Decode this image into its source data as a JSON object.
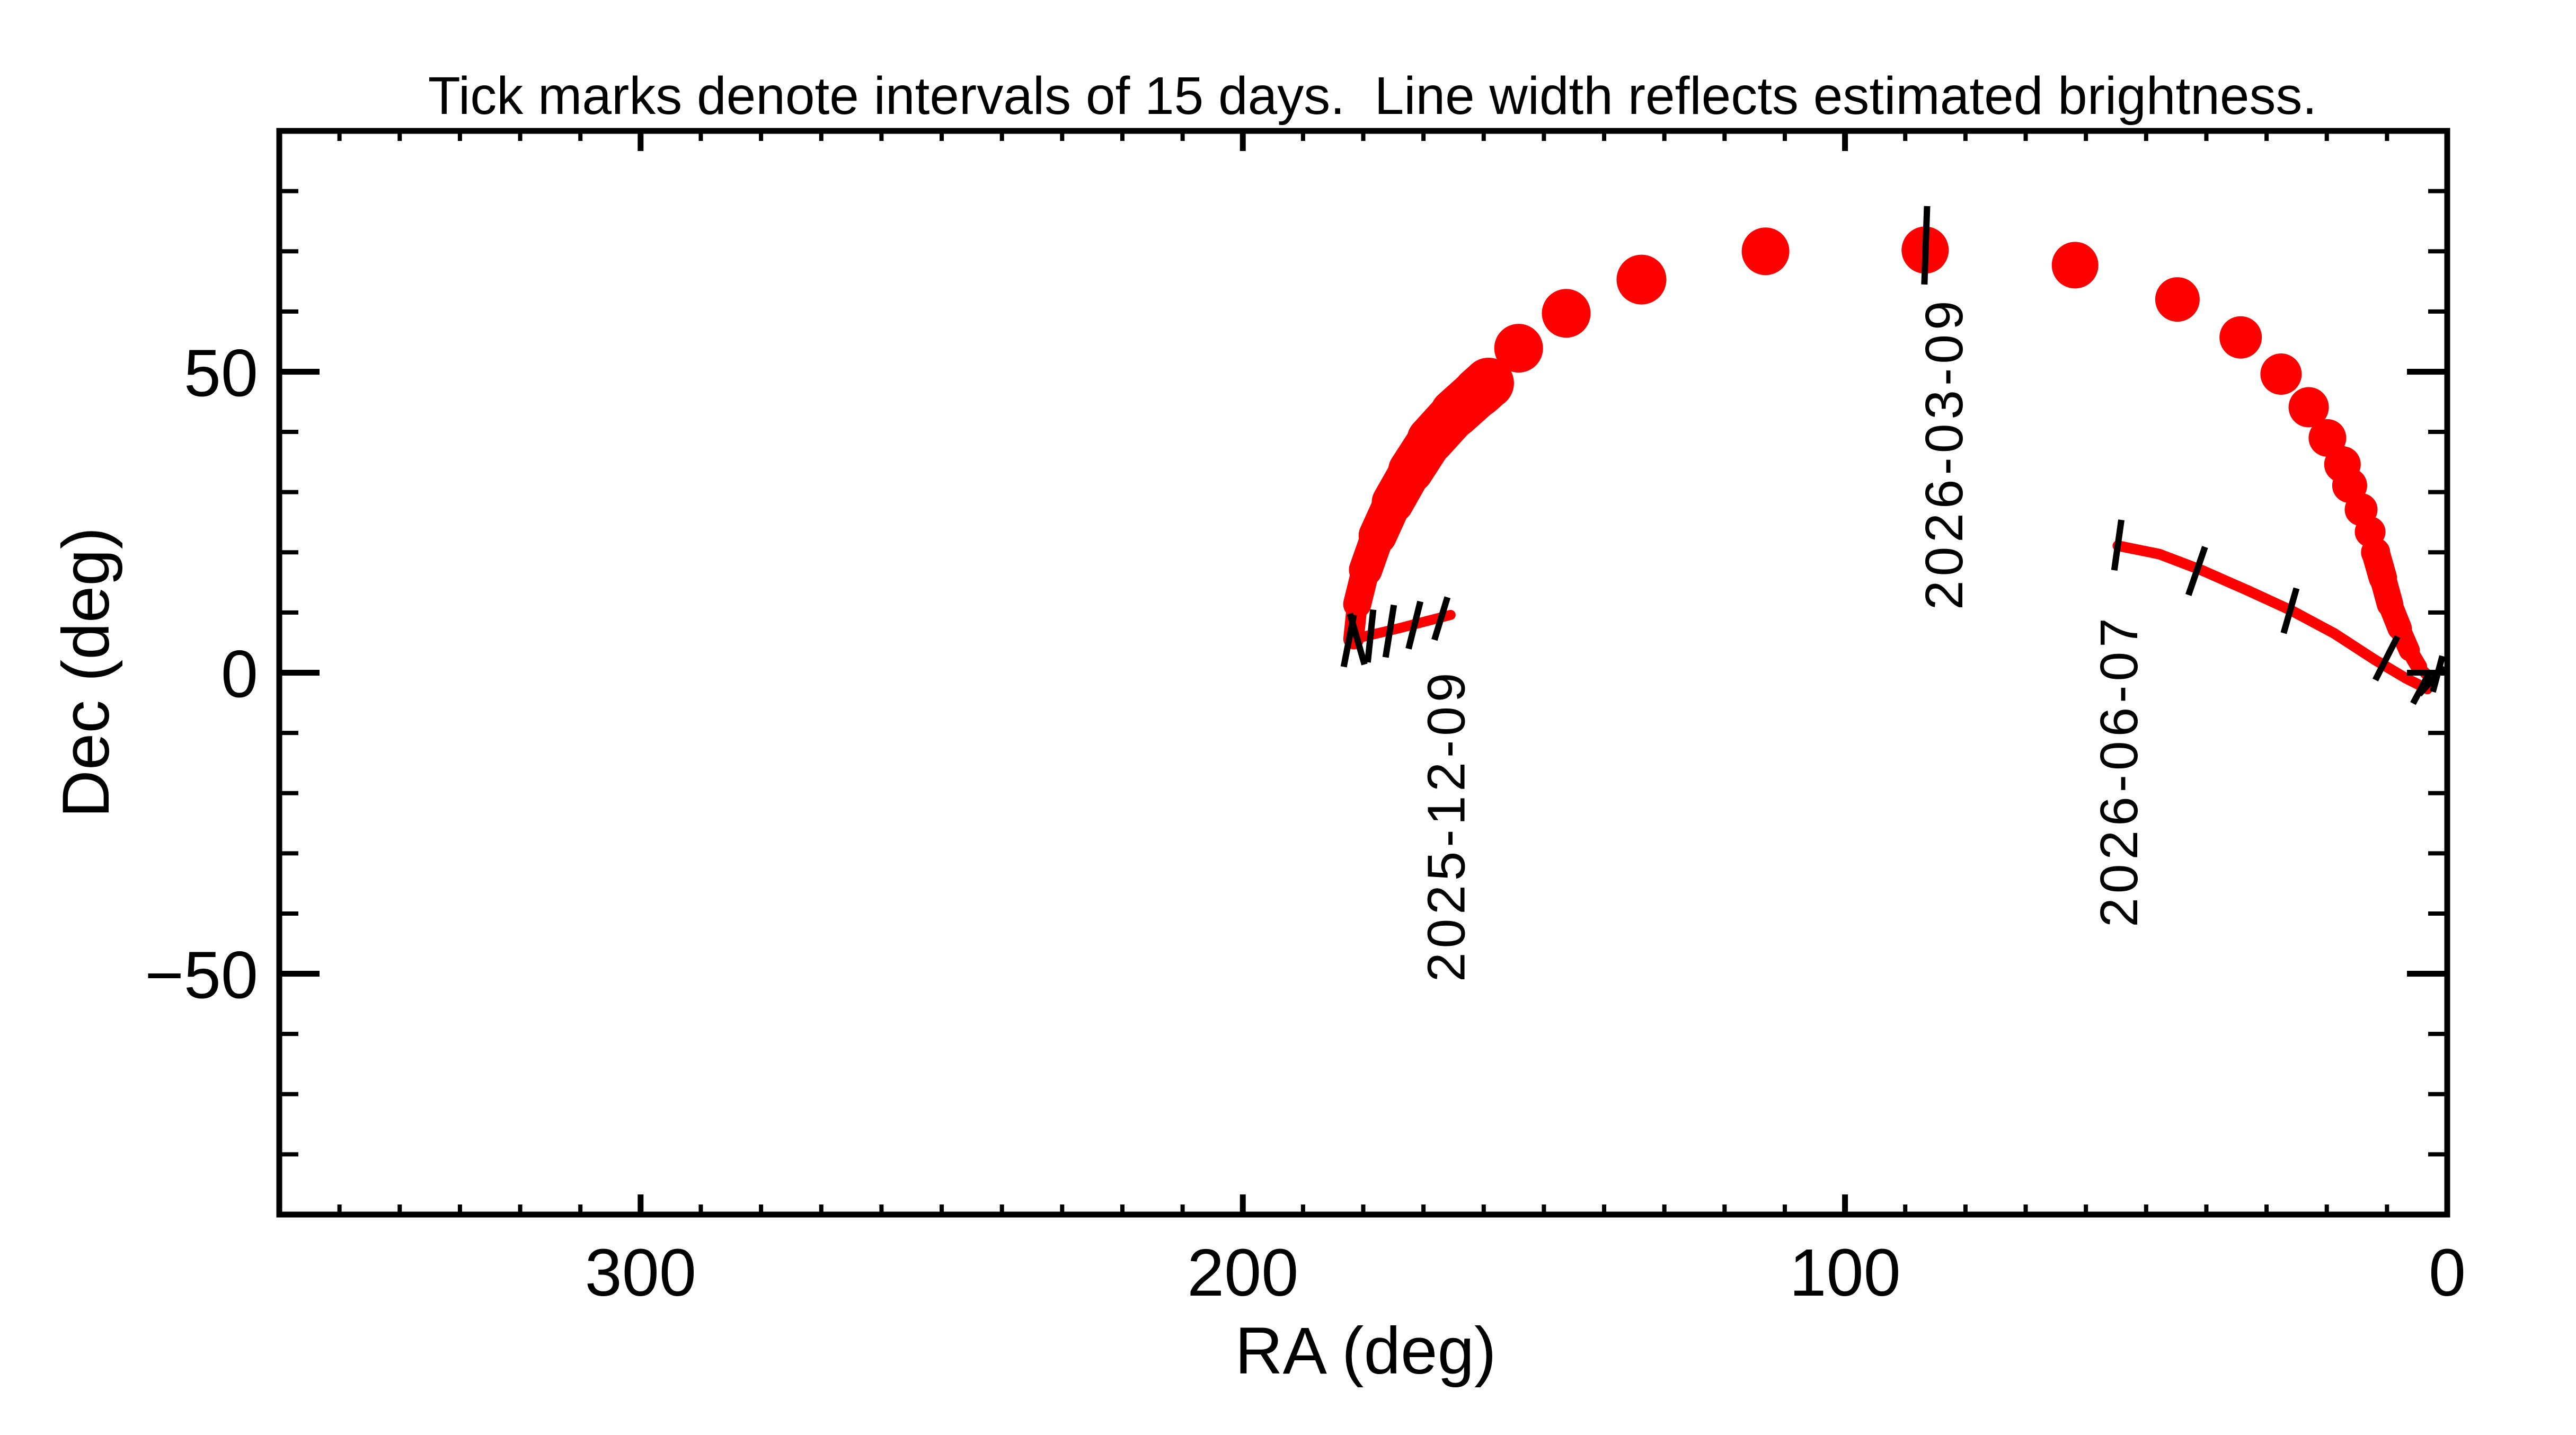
{
  "title": "Tick marks denote intervals of 15 days.  Line width reflects estimated brightness.",
  "colors": {
    "background": "#ffffff",
    "trajectory": "#ff0000",
    "axis": "#000000",
    "text": "#000000"
  },
  "chart_data": {
    "type": "line",
    "title": "Tick marks denote intervals of 15 days.  Line width reflects estimated brightness.",
    "xlabel": "RA (deg)",
    "ylabel": "Dec (deg)",
    "xlim": [
      360,
      0
    ],
    "ylim": [
      -90,
      90
    ],
    "grid": false,
    "x_axis": {
      "major_tick_values": [
        300,
        200,
        100,
        0
      ],
      "tick_labels": [
        "300",
        "200",
        "100",
        "0"
      ],
      "minor_step": 10
    },
    "y_axis": {
      "major_tick_values": [
        50,
        0,
        -50
      ],
      "tick_labels": [
        "50",
        "0",
        "−50"
      ],
      "minor_step": 10
    },
    "series_note": "comet sky-path; line width and dot size encode estimated brightness (px units)",
    "segments": [
      {
        "name": "start-thin-arc",
        "width": 19,
        "points": [
          [
            165.5,
            9.6
          ],
          [
            174.0,
            7.4
          ],
          [
            181.6,
            5.6
          ]
        ]
      },
      {
        "name": "rising-brightening-band",
        "points_w": [
          [
            181.6,
            5.6,
            30
          ],
          [
            181.0,
            11.4,
            48
          ],
          [
            179.6,
            17.1,
            58
          ],
          [
            177.6,
            22.8,
            68
          ],
          [
            175.1,
            28.3,
            76
          ],
          [
            172.1,
            33.6,
            83
          ],
          [
            168.8,
            38.7,
            88
          ],
          [
            164.8,
            43.1,
            92
          ],
          [
            160.9,
            46.6,
            95
          ],
          [
            159.2,
            48.1,
            96
          ]
        ]
      },
      {
        "name": "fading-tail",
        "points_w": [
          [
            11.9,
            20.0,
            55
          ],
          [
            10.7,
            15.8,
            52
          ],
          [
            9.5,
            11.4,
            48
          ],
          [
            7.9,
            7.4,
            44
          ],
          [
            6.3,
            3.7,
            36
          ],
          [
            4.7,
            1.0,
            26
          ],
          [
            3.5,
            -0.2,
            16
          ],
          [
            2.6,
            -1.0,
            5
          ]
        ]
      },
      {
        "name": "june-august-track",
        "width": 20,
        "points": [
          [
            54.7,
            21.1
          ],
          [
            47.8,
            19.7
          ],
          [
            40.7,
            17.0
          ],
          [
            33.2,
            13.7
          ],
          [
            25.8,
            10.3
          ],
          [
            18.7,
            6.5
          ],
          [
            12.1,
            2.2
          ],
          [
            6.9,
            -0.9
          ],
          [
            3.3,
            -2.7
          ]
        ]
      }
    ],
    "dots": [
      [
        159.2,
        48.1,
        96
      ],
      [
        154.2,
        53.9,
        92
      ],
      [
        146.3,
        59.7,
        92
      ],
      [
        133.8,
        65.3,
        94
      ],
      [
        113.2,
        70.0,
        90
      ],
      [
        86.7,
        70.2,
        89
      ],
      [
        61.8,
        67.7,
        88
      ],
      [
        44.8,
        62.0,
        84
      ],
      [
        34.3,
        55.7,
        80
      ],
      [
        27.6,
        49.6,
        78
      ],
      [
        23.0,
        44.1,
        76
      ],
      [
        19.9,
        39.0,
        71
      ],
      [
        17.4,
        34.6,
        69
      ],
      [
        16.2,
        31.1,
        66
      ],
      [
        14.3,
        27.1,
        62
      ],
      [
        12.8,
        23.4,
        58
      ],
      [
        11.9,
        20.0,
        55
      ]
    ],
    "day_ticks": [
      {
        "ra": 182.4,
        "dec": 5.3,
        "rot": 11,
        "len": 100
      },
      {
        "ra": 181.0,
        "dec": 5.6,
        "rot": -16,
        "len": 100
      },
      {
        "ra": 178.8,
        "dec": 6.1,
        "rot": 6,
        "len": 100
      },
      {
        "ra": 175.6,
        "dec": 6.9,
        "rot": 9,
        "len": 100
      },
      {
        "ra": 171.5,
        "dec": 7.9,
        "rot": 14,
        "len": 92
      },
      {
        "ra": 167.1,
        "dec": 9.0,
        "rot": 17,
        "len": 84
      },
      {
        "ra": 86.6,
        "dec": 71.0,
        "rot": 2,
        "len": 148
      },
      {
        "ra": 54.7,
        "dec": 21.2,
        "rot": 8,
        "len": 96
      },
      {
        "ra": 41.6,
        "dec": 16.9,
        "rot": 19,
        "len": 96
      },
      {
        "ra": 26.1,
        "dec": 10.3,
        "rot": 16,
        "len": 88
      },
      {
        "ra": 10.1,
        "dec": 2.4,
        "rot": 27,
        "len": 92
      },
      {
        "ra": 4.4,
        "dec": -2.7,
        "rot": 28,
        "len": 62
      },
      {
        "ra": 2.6,
        "dec": -1.3,
        "rot": 42,
        "len": 70
      },
      {
        "ra": 1.6,
        "dec": -0.2,
        "rot": 15,
        "len": 70
      }
    ],
    "date_labels": [
      {
        "text": "2025-12-09",
        "ra": 163.2,
        "dec": 0.7
      },
      {
        "text": "2026-03-09",
        "ra": 80.5,
        "dec": 62.5
      },
      {
        "text": "2026-06-07",
        "ra": 51.5,
        "dec": 9.8
      }
    ]
  }
}
